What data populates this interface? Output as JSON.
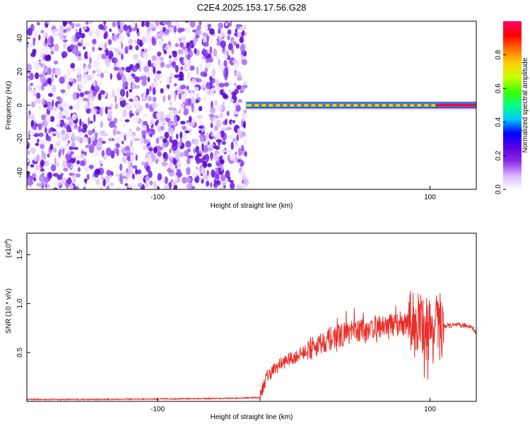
{
  "figure": {
    "title": "C2E4.2025.153.17.56.G28"
  },
  "chart_data": [
    {
      "type": "heatmap",
      "xlabel": "Height of straight line (km)",
      "ylabel": "Frequency (Hz)",
      "xlim": [
        -196,
        134
      ],
      "ylim": [
        -50,
        50
      ],
      "xticks": [
        -100,
        100
      ],
      "yticks": [
        -40,
        -20,
        0,
        20,
        40
      ],
      "noise_region_x": [
        -196,
        -35
      ],
      "signal_region_x": [
        -35,
        134
      ],
      "signal_frequency_hz": 0,
      "colorbar": {
        "label": "Normalized spectral amplitude",
        "range": [
          0,
          1
        ],
        "ticks": [
          "0.0",
          "0.2",
          "0.4",
          "0.6",
          "0.8"
        ],
        "colors": [
          "#ffffff",
          "#d9b3ff",
          "#8a2be2",
          "#5a00e6",
          "#0000ff",
          "#00c8ff",
          "#00ff80",
          "#40ff00",
          "#c8ff00",
          "#ffd000",
          "#ff7000",
          "#ff0000",
          "#ff0066"
        ]
      },
      "grid": false,
      "legend": "colorbar right"
    },
    {
      "type": "line",
      "xlabel": "Height of straight line (km)",
      "ylabel": "SNR (10 * v/v)",
      "y_exponent": "(x10",
      "y_exponent_power": "4",
      "xlim": [
        -196,
        134
      ],
      "ylim": [
        0,
        1.72
      ],
      "xticks": [
        -100,
        100
      ],
      "yticks": [
        "0.5",
        "1.0",
        "1.5"
      ],
      "ytick_values": [
        0.5,
        1.0,
        1.5
      ],
      "series": [
        {
          "color": "#e8302a",
          "x": [
            -196,
            -150,
            -100,
            -50,
            -25,
            -20,
            -15,
            -10,
            -5,
            0,
            10,
            20,
            30,
            40,
            50,
            60,
            70,
            80,
            90,
            95,
            100,
            105,
            110,
            120,
            130,
            134
          ],
          "y": [
            0.02,
            0.02,
            0.025,
            0.03,
            0.04,
            0.25,
            0.32,
            0.38,
            0.42,
            0.45,
            0.52,
            0.6,
            0.66,
            0.7,
            0.73,
            0.76,
            0.78,
            0.79,
            0.8,
            0.78,
            0.72,
            0.75,
            0.77,
            0.78,
            0.77,
            0.7
          ]
        }
      ],
      "grid": false
    }
  ]
}
